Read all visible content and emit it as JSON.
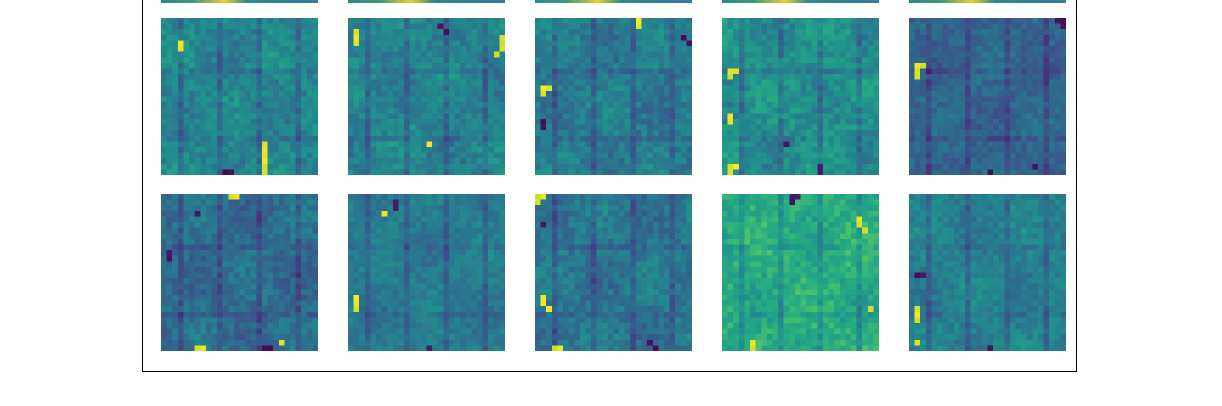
{
  "chart_data": {
    "type": "heatmap",
    "description_grid": {
      "rows": 2,
      "cols": 5
    },
    "colormap": "viridis",
    "panel_resolution": 28,
    "panels": [
      {
        "row": 0,
        "col": 0,
        "seed": 11,
        "mean": 0.46,
        "spread": 0.18,
        "hot_spots": [
          [
            22,
            18
          ],
          [
            23,
            18
          ],
          [
            24,
            18
          ],
          [
            25,
            18
          ],
          [
            26,
            18
          ],
          [
            27,
            18
          ],
          [
            4,
            3
          ],
          [
            5,
            3
          ]
        ],
        "cold_spots": [
          [
            27,
            11
          ],
          [
            27,
            12
          ]
        ]
      },
      {
        "row": 0,
        "col": 1,
        "seed": 23,
        "mean": 0.45,
        "spread": 0.18,
        "hot_spots": [
          [
            2,
            1
          ],
          [
            3,
            1
          ],
          [
            4,
            1
          ],
          [
            3,
            27
          ],
          [
            4,
            27
          ],
          [
            5,
            27
          ],
          [
            6,
            26
          ],
          [
            22,
            14
          ]
        ],
        "cold_spots": [
          [
            1,
            16
          ],
          [
            2,
            17
          ]
        ]
      },
      {
        "row": 0,
        "col": 2,
        "seed": 37,
        "mean": 0.42,
        "spread": 0.18,
        "hot_spots": [
          [
            12,
            1
          ],
          [
            13,
            1
          ],
          [
            12,
            2
          ],
          [
            0,
            18
          ],
          [
            1,
            18
          ]
        ],
        "cold_spots": [
          [
            18,
            1
          ],
          [
            19,
            1
          ],
          [
            3,
            26
          ],
          [
            4,
            27
          ]
        ]
      },
      {
        "row": 0,
        "col": 3,
        "seed": 41,
        "mean": 0.5,
        "spread": 0.2,
        "hot_spots": [
          [
            9,
            1
          ],
          [
            10,
            1
          ],
          [
            9,
            2
          ],
          [
            17,
            1
          ],
          [
            18,
            1
          ],
          [
            26,
            1
          ],
          [
            27,
            1
          ],
          [
            26,
            2
          ]
        ],
        "cold_spots": [
          [
            26,
            17
          ],
          [
            27,
            17
          ],
          [
            22,
            11
          ]
        ]
      },
      {
        "row": 0,
        "col": 4,
        "seed": 53,
        "mean": 0.33,
        "spread": 0.16,
        "hot_spots": [
          [
            8,
            1
          ],
          [
            9,
            1
          ],
          [
            10,
            1
          ],
          [
            8,
            2
          ]
        ],
        "cold_spots": [
          [
            0,
            26
          ],
          [
            0,
            27
          ],
          [
            1,
            27
          ],
          [
            27,
            14
          ],
          [
            26,
            22
          ]
        ]
      },
      {
        "row": 1,
        "col": 0,
        "seed": 61,
        "mean": 0.36,
        "spread": 0.18,
        "hot_spots": [
          [
            0,
            12
          ],
          [
            0,
            13
          ],
          [
            27,
            6
          ],
          [
            27,
            7
          ],
          [
            26,
            21
          ]
        ],
        "cold_spots": [
          [
            27,
            18
          ],
          [
            27,
            19
          ],
          [
            10,
            1
          ],
          [
            11,
            1
          ],
          [
            3,
            6
          ]
        ]
      },
      {
        "row": 1,
        "col": 1,
        "seed": 71,
        "mean": 0.42,
        "spread": 0.14,
        "hot_spots": [
          [
            18,
            1
          ],
          [
            19,
            1
          ],
          [
            20,
            1
          ],
          [
            3,
            6
          ]
        ],
        "cold_spots": [
          [
            1,
            8
          ],
          [
            2,
            8
          ],
          [
            27,
            14
          ]
        ]
      },
      {
        "row": 1,
        "col": 2,
        "seed": 83,
        "mean": 0.4,
        "spread": 0.18,
        "hot_spots": [
          [
            0,
            0
          ],
          [
            0,
            1
          ],
          [
            1,
            0
          ],
          [
            18,
            1
          ],
          [
            19,
            1
          ],
          [
            20,
            2
          ],
          [
            27,
            3
          ],
          [
            27,
            4
          ]
        ],
        "cold_spots": [
          [
            26,
            20
          ],
          [
            27,
            21
          ],
          [
            5,
            1
          ]
        ]
      },
      {
        "row": 1,
        "col": 3,
        "seed": 97,
        "mean": 0.62,
        "spread": 0.18,
        "hot_spots": [
          [
            4,
            24
          ],
          [
            5,
            24
          ],
          [
            6,
            25
          ],
          [
            26,
            5
          ],
          [
            27,
            5
          ],
          [
            20,
            26
          ]
        ],
        "cold_spots": [
          [
            0,
            12
          ],
          [
            0,
            13
          ],
          [
            1,
            12
          ]
        ]
      },
      {
        "row": 1,
        "col": 4,
        "seed": 101,
        "mean": 0.44,
        "spread": 0.16,
        "hot_spots": [
          [
            20,
            1
          ],
          [
            21,
            1
          ],
          [
            22,
            1
          ],
          [
            26,
            1
          ]
        ],
        "cold_spots": [
          [
            14,
            1
          ],
          [
            14,
            2
          ],
          [
            27,
            14
          ]
        ]
      }
    ]
  }
}
